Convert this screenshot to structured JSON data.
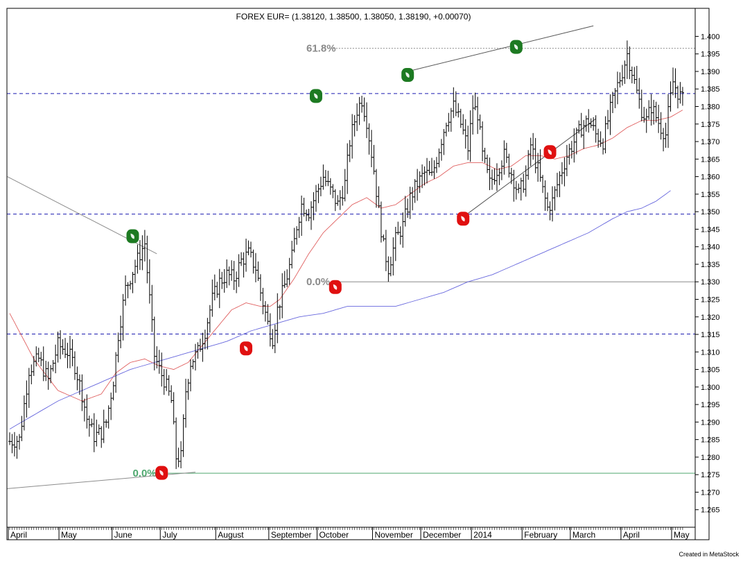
{
  "chart_data": {
    "type": "ohlc",
    "title": "FOREX EUR= (1.38120, 1.38500, 1.38050, 1.38190, +0.00070)",
    "credit": "Created in MetaStock",
    "ylim": [
      1.26,
      1.408
    ],
    "y_ticks": [
      "1.265",
      "1.270",
      "1.275",
      "1.280",
      "1.285",
      "1.290",
      "1.295",
      "1.300",
      "1.305",
      "1.310",
      "1.315",
      "1.320",
      "1.325",
      "1.330",
      "1.335",
      "1.340",
      "1.345",
      "1.350",
      "1.355",
      "1.360",
      "1.365",
      "1.370",
      "1.375",
      "1.380",
      "1.385",
      "1.390",
      "1.395",
      "1.400"
    ],
    "x_labels": [
      {
        "label": "April",
        "i": 0
      },
      {
        "label": "May",
        "i": 21
      },
      {
        "label": "June",
        "i": 43
      },
      {
        "label": "July",
        "i": 63
      },
      {
        "label": "August",
        "i": 86
      },
      {
        "label": "September",
        "i": 108
      },
      {
        "label": "October",
        "i": 128
      },
      {
        "label": "November",
        "i": 151
      },
      {
        "label": "December",
        "i": 171
      },
      {
        "label": "2014",
        "i": 192
      },
      {
        "label": "February",
        "i": 213
      },
      {
        "label": "March",
        "i": 233
      },
      {
        "label": "April",
        "i": 254
      },
      {
        "label": "May",
        "i": 275
      }
    ],
    "n_slots": 280,
    "anchors": [
      [
        0,
        1.2845
      ],
      [
        4,
        1.285
      ],
      [
        8,
        1.305
      ],
      [
        12,
        1.308
      ],
      [
        16,
        1.302
      ],
      [
        20,
        1.312
      ],
      [
        24,
        1.31
      ],
      [
        27,
        1.306
      ],
      [
        30,
        1.298
      ],
      [
        32,
        1.291
      ],
      [
        35,
        1.286
      ],
      [
        38,
        1.287
      ],
      [
        40,
        1.29
      ],
      [
        43,
        1.302
      ],
      [
        45,
        1.315
      ],
      [
        48,
        1.328
      ],
      [
        51,
        1.333
      ],
      [
        54,
        1.338
      ],
      [
        56,
        1.341
      ],
      [
        58,
        1.325
      ],
      [
        60,
        1.309
      ],
      [
        62,
        1.305
      ],
      [
        64,
        1.302
      ],
      [
        67,
        1.296
      ],
      [
        69,
        1.28
      ],
      [
        71,
        1.28
      ],
      [
        73,
        1.299
      ],
      [
        75,
        1.307
      ],
      [
        78,
        1.31
      ],
      [
        81,
        1.316
      ],
      [
        84,
        1.325
      ],
      [
        87,
        1.33
      ],
      [
        90,
        1.332
      ],
      [
        93,
        1.331
      ],
      [
        96,
        1.336
      ],
      [
        99,
        1.338
      ],
      [
        102,
        1.334
      ],
      [
        104,
        1.327
      ],
      [
        107,
        1.318
      ],
      [
        109,
        1.314
      ],
      [
        111,
        1.322
      ],
      [
        114,
        1.329
      ],
      [
        117,
        1.337
      ],
      [
        119,
        1.346
      ],
      [
        121,
        1.352
      ],
      [
        124,
        1.35
      ],
      [
        127,
        1.355
      ],
      [
        130,
        1.36
      ],
      [
        133,
        1.356
      ],
      [
        136,
        1.352
      ],
      [
        139,
        1.358
      ],
      [
        141,
        1.37
      ],
      [
        144,
        1.379
      ],
      [
        146,
        1.382
      ],
      [
        148,
        1.376
      ],
      [
        151,
        1.362
      ],
      [
        153,
        1.35
      ],
      [
        155,
        1.34
      ],
      [
        157,
        1.334
      ],
      [
        160,
        1.342
      ],
      [
        163,
        1.346
      ],
      [
        166,
        1.354
      ],
      [
        169,
        1.358
      ],
      [
        172,
        1.361
      ],
      [
        175,
        1.36
      ],
      [
        178,
        1.368
      ],
      [
        181,
        1.376
      ],
      [
        184,
        1.38
      ],
      [
        187,
        1.375
      ],
      [
        190,
        1.368
      ],
      [
        192,
        1.38
      ],
      [
        194,
        1.378
      ],
      [
        196,
        1.366
      ],
      [
        199,
        1.358
      ],
      [
        202,
        1.362
      ],
      [
        205,
        1.366
      ],
      [
        208,
        1.361
      ],
      [
        211,
        1.355
      ],
      [
        214,
        1.36
      ],
      [
        216,
        1.369
      ],
      [
        219,
        1.362
      ],
      [
        221,
        1.356
      ],
      [
        223,
        1.351
      ],
      [
        225,
        1.353
      ],
      [
        228,
        1.36
      ],
      [
        231,
        1.366
      ],
      [
        234,
        1.37
      ],
      [
        237,
        1.374
      ],
      [
        240,
        1.376
      ],
      [
        243,
        1.372
      ],
      [
        246,
        1.37
      ],
      [
        249,
        1.379
      ],
      [
        252,
        1.386
      ],
      [
        254,
        1.39
      ],
      [
        256,
        1.395
      ],
      [
        258,
        1.39
      ],
      [
        260,
        1.384
      ],
      [
        262,
        1.379
      ],
      [
        264,
        1.376
      ],
      [
        266,
        1.38
      ],
      [
        268,
        1.377
      ],
      [
        270,
        1.374
      ],
      [
        272,
        1.372
      ],
      [
        273,
        1.378
      ],
      [
        275,
        1.387
      ],
      [
        277,
        1.384
      ],
      [
        279,
        1.3819
      ]
    ],
    "ma_short": [
      [
        0,
        1.321
      ],
      [
        10,
        1.308
      ],
      [
        20,
        1.299
      ],
      [
        30,
        1.296
      ],
      [
        38,
        1.298
      ],
      [
        44,
        1.304
      ],
      [
        50,
        1.307
      ],
      [
        56,
        1.308
      ],
      [
        62,
        1.306
      ],
      [
        68,
        1.305
      ],
      [
        74,
        1.307
      ],
      [
        80,
        1.312
      ],
      [
        86,
        1.317
      ],
      [
        92,
        1.322
      ],
      [
        98,
        1.324
      ],
      [
        104,
        1.323
      ],
      [
        108,
        1.323
      ],
      [
        112,
        1.325
      ],
      [
        118,
        1.331
      ],
      [
        124,
        1.338
      ],
      [
        130,
        1.344
      ],
      [
        136,
        1.348
      ],
      [
        142,
        1.352
      ],
      [
        148,
        1.354
      ],
      [
        154,
        1.351
      ],
      [
        160,
        1.352
      ],
      [
        166,
        1.355
      ],
      [
        172,
        1.358
      ],
      [
        178,
        1.36
      ],
      [
        184,
        1.363
      ],
      [
        190,
        1.364
      ],
      [
        196,
        1.364
      ],
      [
        202,
        1.362
      ],
      [
        208,
        1.363
      ],
      [
        214,
        1.366
      ],
      [
        220,
        1.366
      ],
      [
        226,
        1.365
      ],
      [
        232,
        1.366
      ],
      [
        238,
        1.368
      ],
      [
        244,
        1.369
      ],
      [
        250,
        1.371
      ],
      [
        256,
        1.374
      ],
      [
        262,
        1.376
      ],
      [
        268,
        1.376
      ],
      [
        274,
        1.377
      ],
      [
        279,
        1.379
      ]
    ],
    "ma_long": [
      [
        0,
        1.288
      ],
      [
        10,
        1.292
      ],
      [
        20,
        1.296
      ],
      [
        30,
        1.299
      ],
      [
        40,
        1.302
      ],
      [
        50,
        1.305
      ],
      [
        60,
        1.307
      ],
      [
        70,
        1.309
      ],
      [
        80,
        1.311
      ],
      [
        90,
        1.313
      ],
      [
        100,
        1.316
      ],
      [
        110,
        1.318
      ],
      [
        120,
        1.32
      ],
      [
        130,
        1.321
      ],
      [
        140,
        1.323
      ],
      [
        150,
        1.323
      ],
      [
        160,
        1.323
      ],
      [
        170,
        1.325
      ],
      [
        180,
        1.327
      ],
      [
        190,
        1.33
      ],
      [
        200,
        1.332
      ],
      [
        210,
        1.335
      ],
      [
        220,
        1.338
      ],
      [
        230,
        1.341
      ],
      [
        240,
        1.344
      ],
      [
        250,
        1.348
      ],
      [
        256,
        1.35
      ],
      [
        262,
        1.351
      ],
      [
        268,
        1.353
      ],
      [
        274,
        1.356
      ]
    ],
    "horizontal_lines": [
      1.3837,
      1.3493,
      1.3151
    ],
    "fib_levels": [
      {
        "label": "61.8%",
        "value": 1.3966,
        "color": "#8a8a8a",
        "i_text": 125,
        "i_start": 133
      },
      {
        "label": "0.0%",
        "value": 1.33,
        "color": "#8a8a8a",
        "i_text": 125,
        "i_start": 134
      },
      {
        "label": "0.0%",
        "value": 1.2754,
        "color": "#4fa86f",
        "i_text": 53,
        "i_start": 59
      }
    ],
    "trend_lines": [
      {
        "from": [
          -1,
          1.36
        ],
        "to": [
          61,
          1.338
        ],
        "color": "#8c8c8c"
      },
      {
        "from": [
          -1,
          1.271
        ],
        "to": [
          77,
          1.2757
        ],
        "color": "#8c8c8c"
      },
      {
        "from": [
          165,
          1.39
        ],
        "to": [
          242,
          1.403
        ],
        "color": "#555555"
      },
      {
        "from": [
          189,
          1.349
        ],
        "to": [
          243,
          1.3765
        ],
        "color": "#555555"
      }
    ],
    "markers": [
      {
        "name": "marker-green-jun",
        "color": "#1d7a22",
        "i": 51,
        "y": 1.343
      },
      {
        "name": "marker-green-oct",
        "color": "#1d7a22",
        "i": 127,
        "y": 1.383
      },
      {
        "name": "marker-green-dec",
        "color": "#1d7a22",
        "i": 165,
        "y": 1.389
      },
      {
        "name": "marker-green-mar",
        "color": "#1d7a22",
        "i": 210,
        "y": 1.397
      },
      {
        "name": "marker-red-jul",
        "color": "#e01010",
        "i": 63,
        "y": 1.2755
      },
      {
        "name": "marker-red-sep",
        "color": "#e01010",
        "i": 98,
        "y": 1.311
      },
      {
        "name": "marker-red-nov",
        "color": "#e01010",
        "i": 135,
        "y": 1.3285
      },
      {
        "name": "marker-red-feb",
        "color": "#e01010",
        "i": 188,
        "y": 1.348
      },
      {
        "name": "marker-red-apr",
        "color": "#e01010",
        "i": 224,
        "y": 1.367
      }
    ],
    "colors": {
      "bars": "#000000",
      "ma_short": "#e06060",
      "ma_long": "#6666dd",
      "hlines": "#1a1ab0",
      "frame": "#000000"
    }
  }
}
